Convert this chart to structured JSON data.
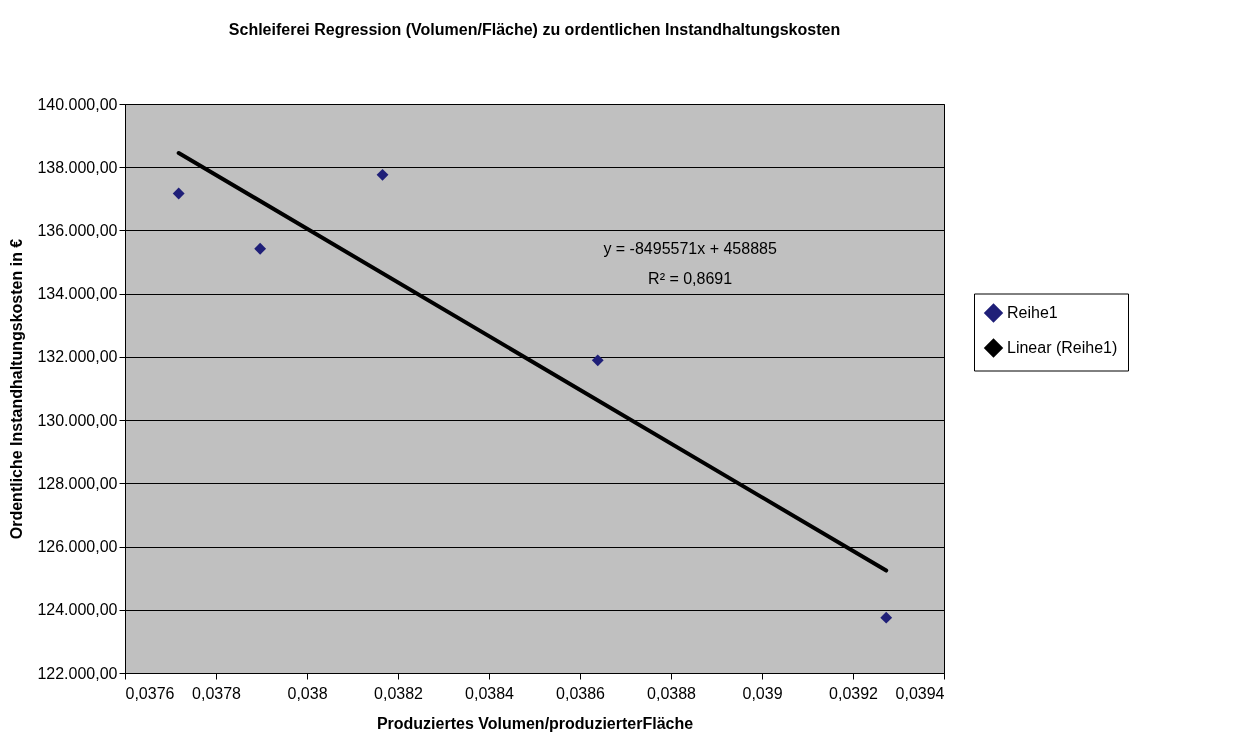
{
  "chart_data": {
    "type": "scatter",
    "title": "Schleiferei Regression (Volumen/Fläche) zu ordentlichen Instandhaltungskosten",
    "xlabel": "Produziertes Volumen/produzierterFläche",
    "ylabel": "Ordentliche Instandhaltungskosten in €",
    "series": [
      {
        "name": "Reihe1",
        "type": "scatter",
        "color": "#1f1f78",
        "x": [
          0.037718,
          0.037897,
          0.038166,
          0.038639,
          0.039273
        ],
        "values": [
          137170,
          135420,
          137760,
          131890,
          123750
        ]
      },
      {
        "name": "Linear (Reihe1)",
        "type": "line",
        "marker": "none",
        "color": "#000000",
        "x": [
          0.037718,
          0.039273
        ],
        "values": [
          138450,
          125240
        ]
      }
    ],
    "xlim": [
      0.0376,
      0.0394
    ],
    "xticks": [
      {
        "value": 0.0376,
        "label": "0,0376"
      },
      {
        "value": 0.0378,
        "label": "0,0378"
      },
      {
        "value": 0.038,
        "label": "0,038"
      },
      {
        "value": 0.0382,
        "label": "0,0382"
      },
      {
        "value": 0.0384,
        "label": "0,0384"
      },
      {
        "value": 0.0386,
        "label": "0,0386"
      },
      {
        "value": 0.0388,
        "label": "0,0388"
      },
      {
        "value": 0.039,
        "label": "0,039"
      },
      {
        "value": 0.0392,
        "label": "0,0392"
      },
      {
        "value": 0.0394,
        "label": "0,0394"
      }
    ],
    "ylim": [
      122000,
      140000
    ],
    "yticks": [
      {
        "value": 122000,
        "label": "122.000,00"
      },
      {
        "value": 124000,
        "label": "124.000,00"
      },
      {
        "value": 126000,
        "label": "126.000,00"
      },
      {
        "value": 128000,
        "label": "128.000,00"
      },
      {
        "value": 130000,
        "label": "130.000,00"
      },
      {
        "value": 132000,
        "label": "132.000,00"
      },
      {
        "value": 134000,
        "label": "134.000,00"
      },
      {
        "value": 136000,
        "label": "136.000,00"
      },
      {
        "value": 138000,
        "label": "138.000,00"
      },
      {
        "value": 140000,
        "label": "140.000,00"
      }
    ],
    "grid": "y",
    "legend": "right",
    "marker": "diamond",
    "annotations": [
      "y = -8495571x + 458885",
      "R² = 0,8691"
    ]
  }
}
